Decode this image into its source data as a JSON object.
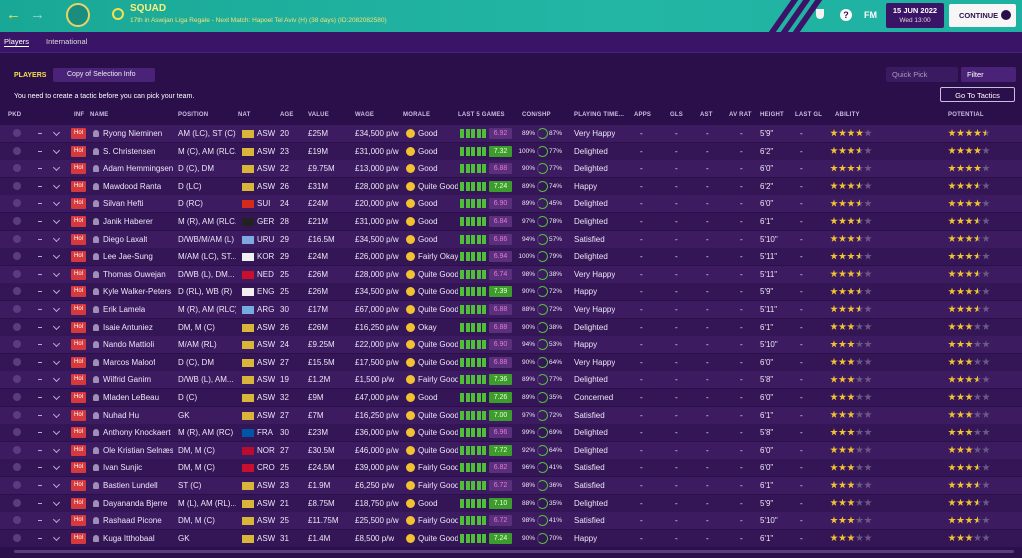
{
  "header": {
    "title": "SQUAD",
    "subtitle": "17th in Aswijan Liga Regale - Next Match: Hapoel Tel Aviv (H) (38 days) (ID:2082082580)",
    "help": "?",
    "brand": "FM",
    "date": "15 JUN 2022",
    "time": "Wed 13:00",
    "continue": "CONTINUE"
  },
  "tabs": [
    "Players",
    "International"
  ],
  "toolbar": {
    "label": "PLAYERS",
    "view": "Copy of Selection Info",
    "quick_pick": "Quick Pick",
    "filter": "Filter",
    "notice": "You need to create a tactic before you can pick your team.",
    "go_to_tactics": "Go To Tactics"
  },
  "table": {
    "columns": [
      "PKD",
      "INF",
      "NAME",
      "POSITION",
      "NAT",
      "AGE",
      "VALUE",
      "WAGE",
      "MORALE",
      "LAST 5 GAMES",
      "CON/SHP",
      "PLAYING TIME...",
      "APPS",
      "GLS",
      "AST",
      "AV RAT",
      "HEIGHT",
      "LAST GL",
      "ABILITY",
      "POTENTIAL"
    ],
    "rows": [
      [
        "Hol",
        "Ryong Nieminen",
        "AM (LC), ST (C)",
        "ASW",
        20,
        "£25M",
        "£34,500 p/w",
        "Good",
        "6.92",
        "89%",
        "87%",
        "Very Happy",
        "-",
        "-",
        "-",
        "-",
        "5'9\"",
        "-",
        4,
        4.5
      ],
      [
        "Hol",
        "S. Christensen",
        "M (C), AM (RLC...",
        "ASW",
        23,
        "£19M",
        "£31,000 p/w",
        "Good",
        "7.32",
        "100%",
        "77%",
        "Delighted",
        "-",
        "-",
        "-",
        "-",
        "6'2\"",
        "-",
        3.5,
        4
      ],
      [
        "Hol",
        "Adam Hemmingsen",
        "D (C), DM",
        "ASW",
        22,
        "£9.75M",
        "£13,000 p/w",
        "Good",
        "6.88",
        "90%",
        "77%",
        "Delighted",
        "-",
        "-",
        "-",
        "-",
        "6'0\"",
        "-",
        3.5,
        4
      ],
      [
        "Hol",
        "Mawdood Ranta",
        "D (LC)",
        "ASW",
        26,
        "£31M",
        "£28,000 p/w",
        "Quite Good",
        "7.24",
        "89%",
        "74%",
        "Happy",
        "-",
        "-",
        "-",
        "-",
        "6'2\"",
        "-",
        3.5,
        3.5
      ],
      [
        "Hol",
        "Silvan Hefti",
        "D (RC)",
        "SUI",
        24,
        "£24M",
        "£20,000 p/w",
        "Good",
        "6.90",
        "89%",
        "45%",
        "Delighted",
        "-",
        "-",
        "-",
        "-",
        "6'0\"",
        "-",
        3.5,
        4
      ],
      [
        "Hol",
        "Janik Haberer",
        "M (R), AM (RLC...",
        "GER",
        28,
        "£21M",
        "£31,000 p/w",
        "Good",
        "6.84",
        "97%",
        "78%",
        "Delighted",
        "-",
        "-",
        "-",
        "-",
        "6'1\"",
        "-",
        3.5,
        3.5
      ],
      [
        "Hol",
        "Diego Laxalt",
        "D/WB/M/AM (L)",
        "URU",
        29,
        "£16.5M",
        "£34,500 p/w",
        "Good",
        "6.86",
        "94%",
        "57%",
        "Satisfied",
        "-",
        "-",
        "-",
        "-",
        "5'10\"",
        "-",
        3.5,
        3.5
      ],
      [
        "Hol",
        "Lee Jae-Sung",
        "M/AM (LC), ST...",
        "KOR",
        29,
        "£24M",
        "£26,000 p/w",
        "Fairly Okay",
        "6.94",
        "100%",
        "79%",
        "Delighted",
        "-",
        "-",
        "-",
        "-",
        "5'11\"",
        "-",
        3.5,
        3.5
      ],
      [
        "Hol",
        "Thomas Ouwejan",
        "D/WB (L), DM...",
        "NED",
        25,
        "£26M",
        "£28,000 p/w",
        "Quite Good",
        "6.74",
        "98%",
        "38%",
        "Very Happy",
        "-",
        "-",
        "-",
        "-",
        "5'11\"",
        "-",
        3.5,
        3.5
      ],
      [
        "Hol",
        "Kyle Walker-Peters",
        "D (RL), WB (R)",
        "ENG",
        25,
        "£26M",
        "£34,500 p/w",
        "Quite Good",
        "7.39",
        "90%",
        "72%",
        "Happy",
        "-",
        "-",
        "-",
        "-",
        "5'9\"",
        "-",
        3.5,
        3.5
      ],
      [
        "Hol",
        "Erik Lamela",
        "M (R), AM (RLC)",
        "ARG",
        30,
        "£17M",
        "£67,000 p/w",
        "Quite Good",
        "6.88",
        "88%",
        "72%",
        "Very Happy",
        "-",
        "-",
        "-",
        "-",
        "5'11\"",
        "-",
        3.5,
        3.5
      ],
      [
        "Hol",
        "Isaie Antuniez",
        "DM, M (C)",
        "ASW",
        26,
        "£26M",
        "£16,250 p/w",
        "Okay",
        "6.88",
        "90%",
        "38%",
        "Delighted",
        "-",
        "-",
        "-",
        "-",
        "6'1\"",
        "-",
        3,
        3
      ],
      [
        "Hol",
        "Nando Mattioli",
        "M/AM (RL)",
        "ASW",
        24,
        "£9.25M",
        "£22,000 p/w",
        "Quite Good",
        "6.90",
        "94%",
        "53%",
        "Happy",
        "-",
        "-",
        "-",
        "-",
        "5'10\"",
        "-",
        3,
        3
      ],
      [
        "Hol",
        "Marcos Maloof",
        "D (C), DM",
        "ASW",
        27,
        "£15.5M",
        "£17,500 p/w",
        "Quite Good",
        "6.88",
        "90%",
        "64%",
        "Very Happy",
        "-",
        "-",
        "-",
        "-",
        "6'0\"",
        "-",
        3,
        3
      ],
      [
        "Hol",
        "Wilfrid Ganim",
        "D/WB (L), AM...",
        "ASW",
        19,
        "£1.2M",
        "£1,500 p/w",
        "Fairly Good",
        "7.36",
        "89%",
        "77%",
        "Delighted",
        "-",
        "-",
        "-",
        "-",
        "5'8\"",
        "-",
        3,
        3.5
      ],
      [
        "Hol",
        "Mladen LeBeau",
        "D (C)",
        "ASW",
        32,
        "£9M",
        "£47,000 p/w",
        "Good",
        "7.26",
        "89%",
        "35%",
        "Concerned",
        "-",
        "-",
        "-",
        "-",
        "6'0\"",
        "-",
        3,
        3
      ],
      [
        "Hol",
        "Nuhad Hu",
        "GK",
        "ASW",
        27,
        "£7M",
        "£16,250 p/w",
        "Quite Good",
        "7.00",
        "97%",
        "72%",
        "Satisfied",
        "-",
        "-",
        "-",
        "-",
        "6'1\"",
        "-",
        3,
        3
      ],
      [
        "Hol",
        "Anthony Knockaert",
        "M (R), AM (RC)",
        "FRA",
        30,
        "£23M",
        "£36,000 p/w",
        "Quite Good",
        "6.96",
        "99%",
        "69%",
        "Delighted",
        "-",
        "-",
        "-",
        "-",
        "5'8\"",
        "-",
        3,
        3
      ],
      [
        "Hol",
        "Ole Kristian Selnæs",
        "DM, M (C)",
        "NOR",
        27,
        "£30.5M",
        "£46,000 p/w",
        "Quite Good",
        "7.72",
        "92%",
        "64%",
        "Delighted",
        "-",
        "-",
        "-",
        "-",
        "6'0\"",
        "-",
        3,
        3
      ],
      [
        "Hol",
        "Ivan Sunjic",
        "DM, M (C)",
        "CRO",
        25,
        "£24.5M",
        "£39,000 p/w",
        "Fairly Good",
        "6.82",
        "96%",
        "41%",
        "Satisfied",
        "-",
        "-",
        "-",
        "-",
        "6'0\"",
        "-",
        3,
        3.5
      ],
      [
        "Hol",
        "Bastien Lundell",
        "ST (C)",
        "ASW",
        23,
        "£1.9M",
        "£6,250 p/w",
        "Fairly Good",
        "6.72",
        "98%",
        "36%",
        "Satisfied",
        "-",
        "-",
        "-",
        "-",
        "6'1\"",
        "-",
        3,
        3.5
      ],
      [
        "Hol",
        "Dayananda Bjerre",
        "M (L), AM (RL)...",
        "ASW",
        21,
        "£8.75M",
        "£18,750 p/w",
        "Good",
        "7.10",
        "88%",
        "35%",
        "Delighted",
        "-",
        "-",
        "-",
        "-",
        "5'9\"",
        "-",
        3,
        3.5
      ],
      [
        "Hol",
        "Rashaad Picone",
        "DM, M (C)",
        "ASW",
        25,
        "£11.75M",
        "£25,500 p/w",
        "Fairly Good",
        "6.72",
        "98%",
        "41%",
        "Satisfied",
        "-",
        "-",
        "-",
        "-",
        "5'10\"",
        "-",
        3,
        3.5
      ],
      [
        "Hol",
        "Kuga Itthobaal",
        "GK",
        "ASW",
        31,
        "£1.4M",
        "£8,500 p/w",
        "Quite Good",
        "7.24",
        "90%",
        "70%",
        "Happy",
        "-",
        "-",
        "-",
        "-",
        "6'1\"",
        "-",
        3,
        3
      ]
    ]
  }
}
